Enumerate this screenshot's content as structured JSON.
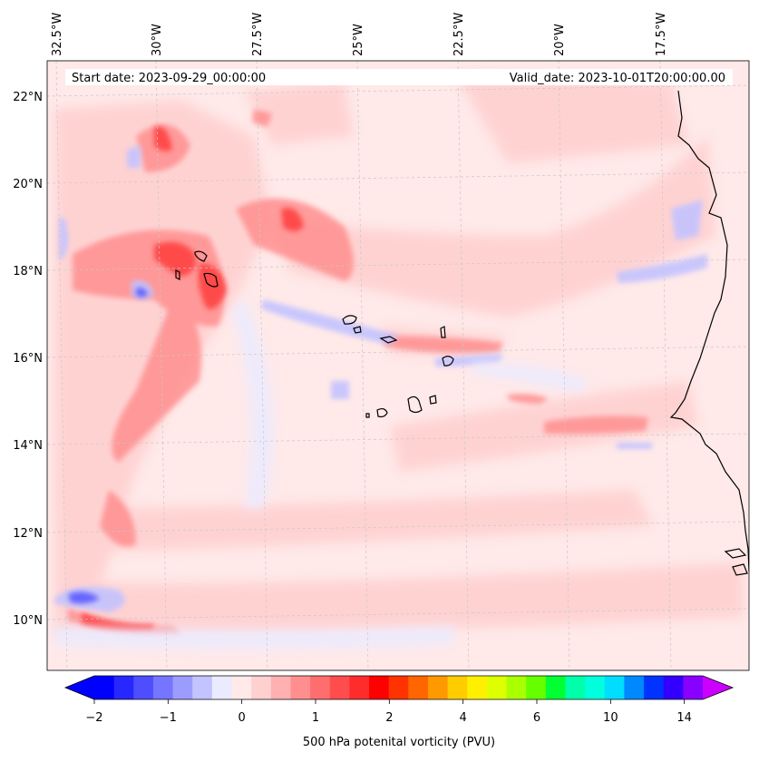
{
  "header": {
    "start_date": "Start date: 2023-09-29_00:00:00",
    "valid_date": "Valid_date: 2023-10-01T20:00:00.00"
  },
  "longitude_labels": [
    "32.5°W",
    "30°W",
    "27.5°W",
    "25°W",
    "22.5°W",
    "20°W",
    "17.5°W"
  ],
  "latitude_labels": [
    "22°N",
    "20°N",
    "18°N",
    "16°N",
    "14°N",
    "12°N",
    "10°N"
  ],
  "colorbar": {
    "label": "500 hPa potenital vorticity (PVU)",
    "tick_labels": [
      "−2",
      "−1",
      "0",
      "1",
      "2",
      "4",
      "6",
      "10",
      "14"
    ],
    "tick_values": [
      -2,
      -1,
      0,
      1,
      2,
      4,
      6,
      10,
      14
    ],
    "colors": [
      "#0000ff",
      "#2727ff",
      "#4e4eff",
      "#7575ff",
      "#9c9cff",
      "#c3c3ff",
      "#ebebff",
      "#ffe9e9",
      "#ffd0d0",
      "#ffb0b0",
      "#ff8f8f",
      "#ff6e6e",
      "#ff4d4d",
      "#ff2c2c",
      "#ff0000",
      "#ff3300",
      "#ff6600",
      "#ff9900",
      "#ffcc00",
      "#fff000",
      "#ddff00",
      "#aaff00",
      "#66ff00",
      "#00ff33",
      "#00ffaa",
      "#00ffdd",
      "#00ddff",
      "#0088ff",
      "#0033ff",
      "#3300ff",
      "#8800ff"
    ],
    "under_color": "#0000ff",
    "over_color": "#cc00ff"
  },
  "map": {
    "background_color": "#ffe9e9",
    "coastline_color": "#000000",
    "gridline_color": "#c8c8c8"
  }
}
